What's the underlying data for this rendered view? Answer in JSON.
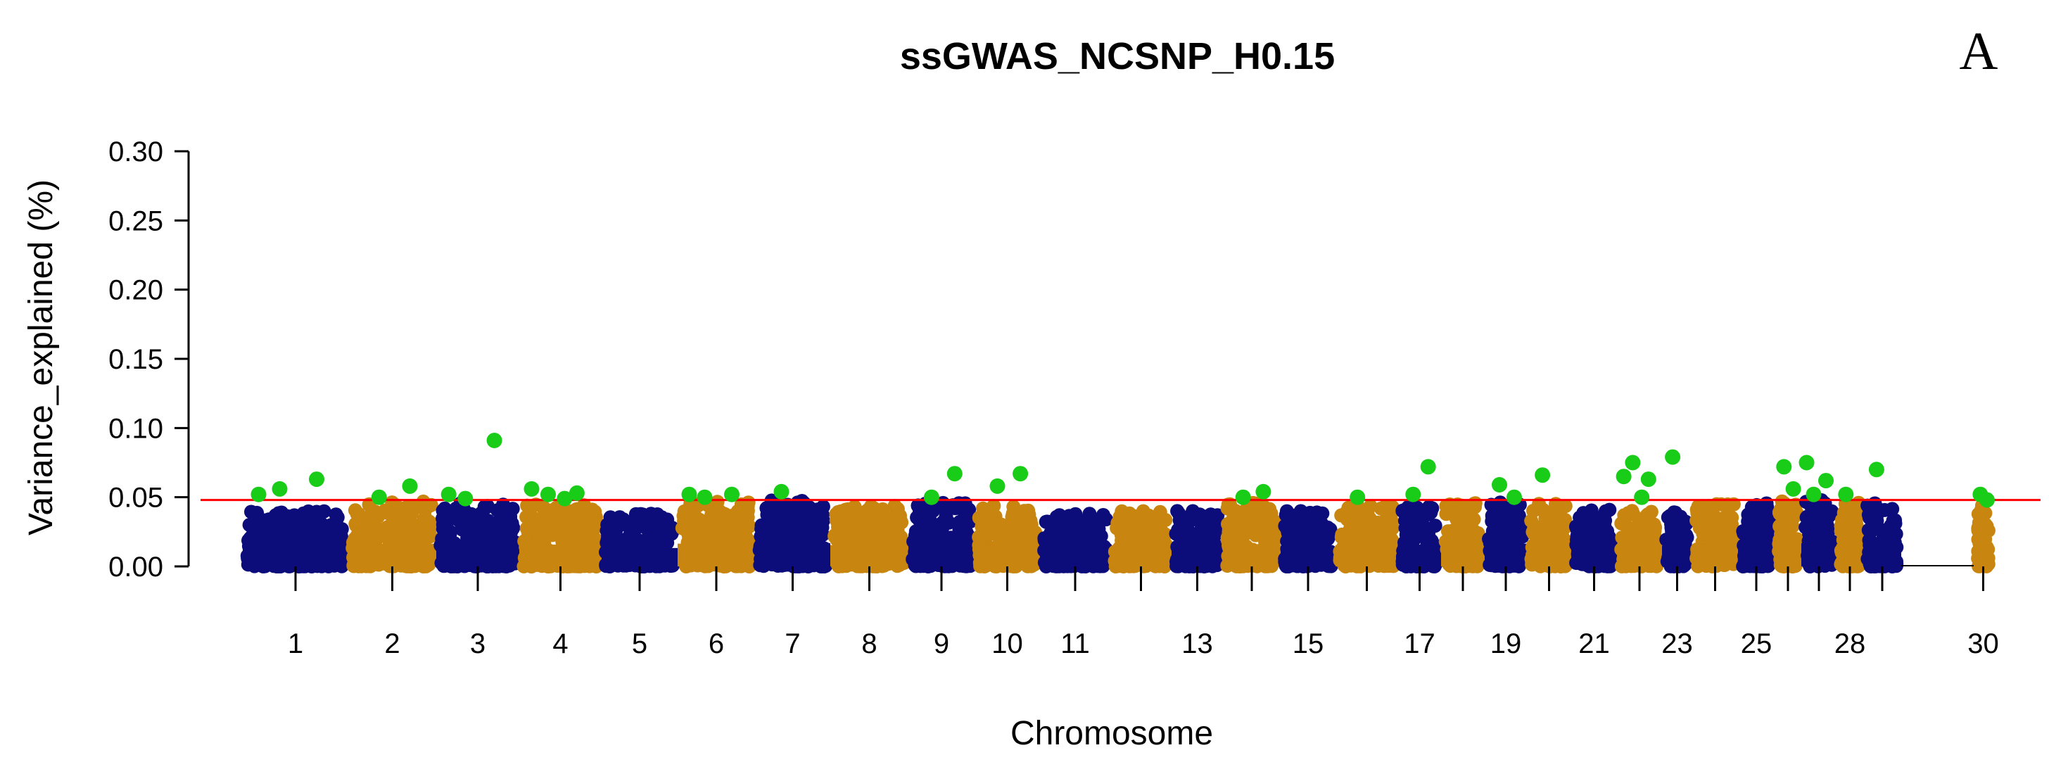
{
  "chart_data": {
    "type": "scatter",
    "subtype": "manhattan",
    "title": "ssGWAS_NCSNP_H0.15",
    "panel_label": "A",
    "xlabel": "Chromosome",
    "ylabel": "Variance_explained (%)",
    "ylim": [
      0,
      0.3
    ],
    "yticks": [
      "0.00",
      "0.05",
      "0.10",
      "0.15",
      "0.20",
      "0.25",
      "0.30"
    ],
    "xtick_labels": [
      "1",
      "2",
      "3",
      "4",
      "5",
      "6",
      "7",
      "8",
      "9",
      "10",
      "11",
      "13",
      "15",
      "17",
      "19",
      "21",
      "23",
      "25",
      "28",
      "30"
    ],
    "threshold": 0.048,
    "grid": false,
    "colors": {
      "odd_chromosome": "#0c0c7a",
      "even_chromosome": "#c8850f",
      "significant": "#18cc18",
      "threshold_line": "#ff0000"
    },
    "chromosomes": [
      {
        "chr": 1,
        "max": 0.04
      },
      {
        "chr": 2,
        "max": 0.047
      },
      {
        "chr": 3,
        "max": 0.046
      },
      {
        "chr": 4,
        "max": 0.045
      },
      {
        "chr": 5,
        "max": 0.038
      },
      {
        "chr": 6,
        "max": 0.047
      },
      {
        "chr": 7,
        "max": 0.048
      },
      {
        "chr": 8,
        "max": 0.044
      },
      {
        "chr": 9,
        "max": 0.046
      },
      {
        "chr": 10,
        "max": 0.044
      },
      {
        "chr": 11,
        "max": 0.038
      },
      {
        "chr": 12,
        "max": 0.04
      },
      {
        "chr": 13,
        "max": 0.04
      },
      {
        "chr": 14,
        "max": 0.046
      },
      {
        "chr": 15,
        "max": 0.04
      },
      {
        "chr": 16,
        "max": 0.044
      },
      {
        "chr": 17,
        "max": 0.045
      },
      {
        "chr": 18,
        "max": 0.046
      },
      {
        "chr": 19,
        "max": 0.047
      },
      {
        "chr": 20,
        "max": 0.046
      },
      {
        "chr": 21,
        "max": 0.042
      },
      {
        "chr": 22,
        "max": 0.04
      },
      {
        "chr": 23,
        "max": 0.043
      },
      {
        "chr": 24,
        "max": 0.046
      },
      {
        "chr": 25,
        "max": 0.046
      },
      {
        "chr": 26,
        "max": 0.047
      },
      {
        "chr": 27,
        "max": 0.048
      },
      {
        "chr": 28,
        "max": 0.046
      },
      {
        "chr": 29,
        "max": 0.046
      },
      {
        "chr": 30,
        "max": 0.045
      }
    ],
    "significant_points": [
      {
        "chr": 1,
        "y": 0.056
      },
      {
        "chr": 1,
        "y": 0.063
      },
      {
        "chr": 1,
        "y": 0.052
      },
      {
        "chr": 2,
        "y": 0.05
      },
      {
        "chr": 2,
        "y": 0.058
      },
      {
        "chr": 3,
        "y": 0.049
      },
      {
        "chr": 3,
        "y": 0.091
      },
      {
        "chr": 3,
        "y": 0.052
      },
      {
        "chr": 4,
        "y": 0.052
      },
      {
        "chr": 4,
        "y": 0.053
      },
      {
        "chr": 4,
        "y": 0.056
      },
      {
        "chr": 4,
        "y": 0.049
      },
      {
        "chr": 6,
        "y": 0.05
      },
      {
        "chr": 6,
        "y": 0.052
      },
      {
        "chr": 6,
        "y": 0.052
      },
      {
        "chr": 7,
        "y": 0.054
      },
      {
        "chr": 9,
        "y": 0.05
      },
      {
        "chr": 9,
        "y": 0.067
      },
      {
        "chr": 10,
        "y": 0.058
      },
      {
        "chr": 10,
        "y": 0.067
      },
      {
        "chr": 14,
        "y": 0.05
      },
      {
        "chr": 14,
        "y": 0.054
      },
      {
        "chr": 16,
        "y": 0.05
      },
      {
        "chr": 17,
        "y": 0.052
      },
      {
        "chr": 17,
        "y": 0.072
      },
      {
        "chr": 19,
        "y": 0.059
      },
      {
        "chr": 19,
        "y": 0.05
      },
      {
        "chr": 20,
        "y": 0.066
      },
      {
        "chr": 22,
        "y": 0.075
      },
      {
        "chr": 22,
        "y": 0.063
      },
      {
        "chr": 22,
        "y": 0.065
      },
      {
        "chr": 23,
        "y": 0.079
      },
      {
        "chr": 22,
        "y": 0.05
      },
      {
        "chr": 26,
        "y": 0.072
      },
      {
        "chr": 26,
        "y": 0.056
      },
      {
        "chr": 27,
        "y": 0.052
      },
      {
        "chr": 27,
        "y": 0.062
      },
      {
        "chr": 27,
        "y": 0.075
      },
      {
        "chr": 28,
        "y": 0.052
      },
      {
        "chr": 29,
        "y": 0.07
      },
      {
        "chr": 30,
        "y": 0.052
      },
      {
        "chr": 30,
        "y": 0.048
      }
    ]
  }
}
